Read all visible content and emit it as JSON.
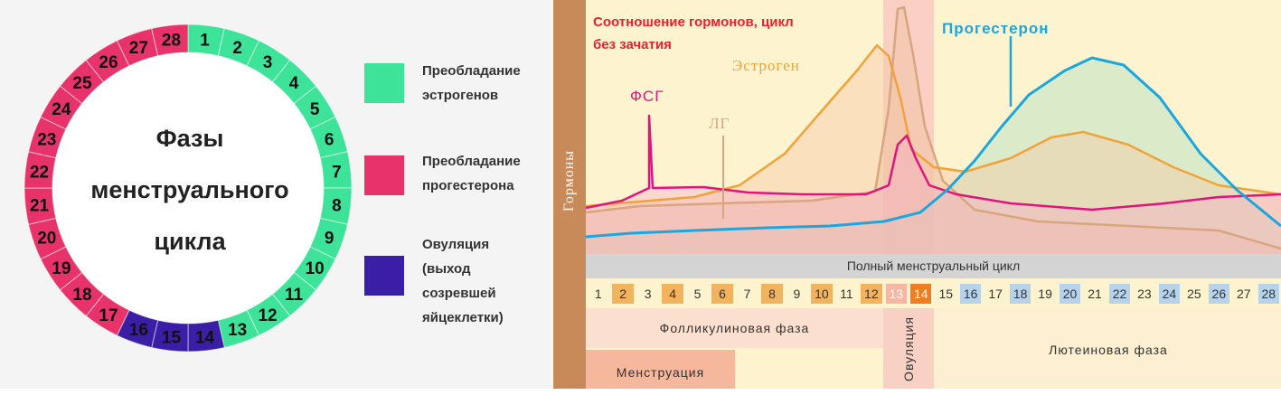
{
  "left": {
    "title": "Фазы\nменструального\nцикла",
    "days": [
      "1",
      "2",
      "3",
      "4",
      "5",
      "6",
      "7",
      "8",
      "9",
      "10",
      "11",
      "12",
      "13",
      "14",
      "15",
      "16",
      "17",
      "18",
      "19",
      "20",
      "21",
      "22",
      "23",
      "24",
      "25",
      "26",
      "27",
      "28"
    ],
    "colors": {
      "estrogen": "#3ee39a",
      "progesterone": "#e8326a",
      "ovulation": "#3a1fa6"
    },
    "legend": [
      {
        "name": "estrogen",
        "text": "Преобладание\nэстрогенов",
        "color": "#3ee39a"
      },
      {
        "name": "progesterone",
        "text": "Преобладание\nпрогестерона",
        "color": "#e8326a"
      },
      {
        "name": "ovulation",
        "text": "Овуляция\n(выход\nсозревшей\nяйцеклетки)",
        "color": "#3a1fa6"
      }
    ]
  },
  "right": {
    "y_label": "Гормоны",
    "title": "Соотношение гормонов, цикл\nбез зачатия",
    "series": [
      {
        "name": "Прогестерон",
        "color": "#1aa7df"
      },
      {
        "name": "Эстроген",
        "color": "#f0a33a"
      },
      {
        "name": "ФСГ",
        "color": "#e0147f"
      },
      {
        "name": "ЛГ",
        "color": "#d9a57f"
      }
    ],
    "full_cycle_label": "Полный менструальный цикл",
    "days": [
      "1",
      "2",
      "3",
      "4",
      "5",
      "6",
      "7",
      "8",
      "9",
      "10",
      "11",
      "12",
      "13",
      "14",
      "15",
      "16",
      "17",
      "18",
      "19",
      "20",
      "21",
      "22",
      "23",
      "24",
      "25",
      "26",
      "27",
      "28"
    ],
    "phases": {
      "follicular": "Фолликулиновая фаза",
      "menstruation": "Менструация",
      "ovulation": "Овуляция",
      "luteal": "Лютеиновая фаза"
    }
  }
}
